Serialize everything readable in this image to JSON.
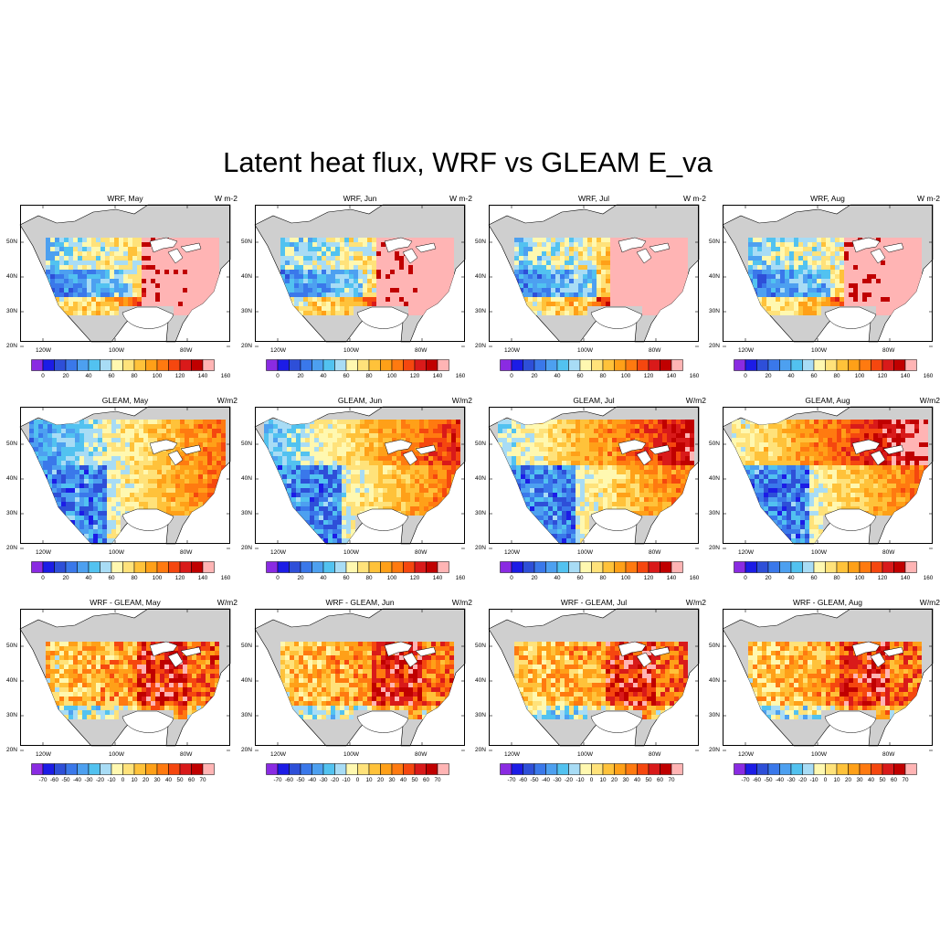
{
  "title": "Latent heat flux, WRF vs GLEAM E_va",
  "lat_labels": [
    "50N",
    "40N",
    "30N",
    "20N"
  ],
  "lon_labels": [
    "120W",
    "100W",
    "80W"
  ],
  "colorbar_abs": {
    "labels": [
      "0",
      "20",
      "40",
      "60",
      "80",
      "100",
      "120",
      "140",
      "160"
    ],
    "colors": [
      "#8a2be2",
      "#1c1ce6",
      "#2e4fd8",
      "#3a78ea",
      "#4da0f0",
      "#52c2f0",
      "#a8dcf5",
      "#fff8b0",
      "#ffe27a",
      "#ffc23a",
      "#ffa018",
      "#ff7a10",
      "#f5470f",
      "#d91a1a",
      "#c00000",
      "#ffb4b4"
    ]
  },
  "colorbar_diff": {
    "labels": [
      "-70",
      "-60",
      "-50",
      "-40",
      "-30",
      "-20",
      "-10",
      "0",
      "10",
      "20",
      "30",
      "40",
      "50",
      "60",
      "70"
    ],
    "colors": [
      "#8a2be2",
      "#1c1ce6",
      "#2e4fd8",
      "#3a78ea",
      "#4da0f0",
      "#52c2f0",
      "#a8dcf5",
      "#fff8b0",
      "#ffe27a",
      "#ffc23a",
      "#ffa018",
      "#ff7a10",
      "#f5470f",
      "#d91a1a",
      "#c00000",
      "#ffb4b4"
    ]
  },
  "panels": [
    {
      "title": "WRF, May",
      "units": "W m-2",
      "kind": "wrf",
      "month": 0
    },
    {
      "title": "WRF, Jun",
      "units": "W m-2",
      "kind": "wrf",
      "month": 1
    },
    {
      "title": "WRF, Jul",
      "units": "W m-2",
      "kind": "wrf",
      "month": 2
    },
    {
      "title": "WRF, Aug",
      "units": "W m-2",
      "kind": "wrf",
      "month": 3
    },
    {
      "title": "GLEAM, May",
      "units": "W/m2",
      "kind": "gleam",
      "month": 0
    },
    {
      "title": "GLEAM, Jun",
      "units": "W/m2",
      "kind": "gleam",
      "month": 1
    },
    {
      "title": "GLEAM, Jul",
      "units": "W/m2",
      "kind": "gleam",
      "month": 2
    },
    {
      "title": "GLEAM, Aug",
      "units": "W/m2",
      "kind": "gleam",
      "month": 3
    },
    {
      "title": "WRF - GLEAM, May",
      "units": "W/m2",
      "kind": "diff",
      "month": 0
    },
    {
      "title": "WRF - GLEAM, Jun",
      "units": "W/m2",
      "kind": "diff",
      "month": 1
    },
    {
      "title": "WRF - GLEAM, Jul",
      "units": "W/m2",
      "kind": "diff",
      "month": 2
    },
    {
      "title": "WRF - GLEAM, Aug",
      "units": "W/m2",
      "kind": "diff",
      "month": 3
    }
  ]
}
